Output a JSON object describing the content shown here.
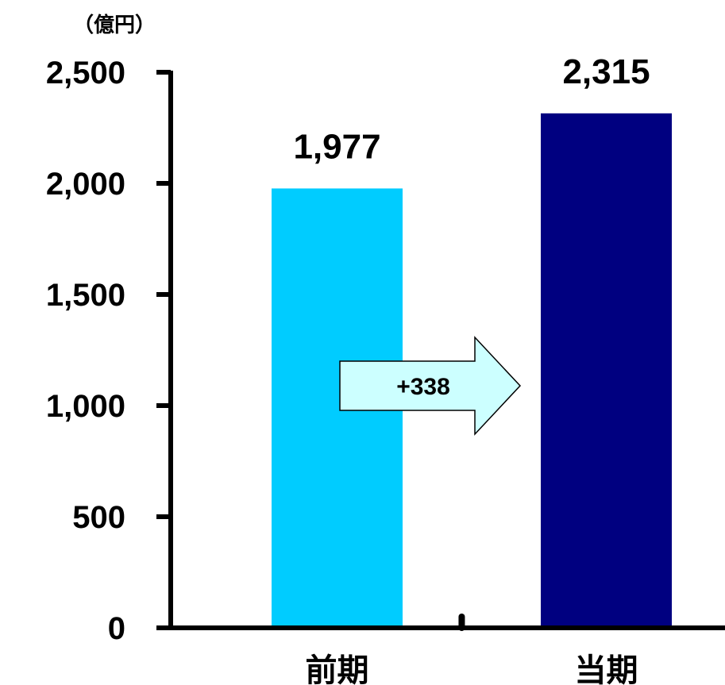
{
  "chart_data": {
    "type": "bar",
    "unit": "（億円）",
    "categories": [
      "前期",
      "当期"
    ],
    "values": [
      1977,
      2315
    ],
    "value_labels": [
      "1,977",
      "2,315"
    ],
    "colors": [
      "#00CCFF",
      "#000080"
    ],
    "ylim": [
      0,
      2500
    ],
    "yticks": [
      0,
      500,
      1000,
      1500,
      2000,
      2500
    ],
    "ytick_labels": [
      "0",
      "500",
      "1,000",
      "1,500",
      "2,000",
      "2,500"
    ],
    "grid": false,
    "legend": "none",
    "annotation": {
      "type": "arrow",
      "from": "前期",
      "to": "当期",
      "label": "+338",
      "fill": "#CCFFFF"
    }
  }
}
